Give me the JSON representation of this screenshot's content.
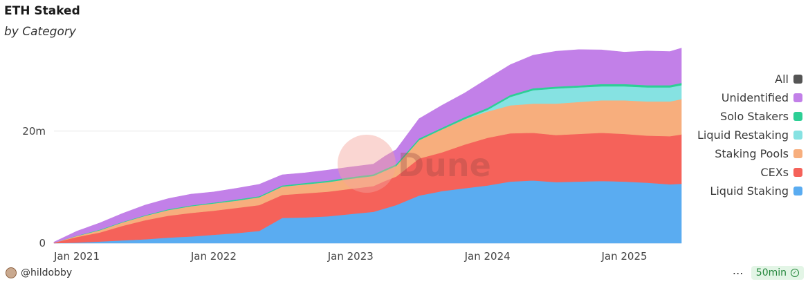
{
  "header": {
    "title": "ETH Staked",
    "subtitle": "by Category"
  },
  "watermark": "Dune",
  "footer": {
    "author": "@hildobby",
    "refresh": "50min"
  },
  "chart_data": {
    "type": "area",
    "stacked": true,
    "x": [
      "2020-11",
      "2021-01",
      "2021-03",
      "2021-05",
      "2021-07",
      "2021-09",
      "2021-11",
      "2022-01",
      "2022-03",
      "2022-05",
      "2022-07",
      "2022-09",
      "2022-11",
      "2023-01",
      "2023-03",
      "2023-04",
      "2023-05",
      "2023-07",
      "2023-09",
      "2023-11",
      "2024-01",
      "2024-03",
      "2024-05",
      "2024-07",
      "2024-09",
      "2024-11",
      "2025-01",
      "2025-03",
      "2025-05",
      "2025-06"
    ],
    "x_ticks": [
      "Jan 2021",
      "Jan 2022",
      "Jan 2023",
      "Jan 2024",
      "Jan 2025"
    ],
    "y_ticks": [
      "0",
      "20m"
    ],
    "ylim": [
      0,
      36000000
    ],
    "grid": true,
    "legend_position": "right",
    "legend_all": {
      "name": "All",
      "color": "#555555"
    },
    "series": [
      {
        "name": "Liquid Staking",
        "color": "#5aacf1",
        "values": [
          0,
          0.1,
          0.3,
          0.5,
          0.7,
          1.0,
          1.2,
          1.5,
          1.8,
          2.2,
          4.5,
          4.6,
          4.8,
          5.2,
          5.6,
          6.2,
          6.8,
          8.5,
          9.3,
          9.8,
          10.3,
          11.0,
          11.2,
          10.9,
          11.0,
          11.1,
          11.0,
          10.8,
          10.5,
          10.6
        ]
      },
      {
        "name": "CEXs",
        "color": "#f5625a",
        "values": [
          0.1,
          1.0,
          1.6,
          2.6,
          3.4,
          3.9,
          4.2,
          4.3,
          4.5,
          4.6,
          4.1,
          4.3,
          4.4,
          4.5,
          4.6,
          4.9,
          5.1,
          6.6,
          6.9,
          7.8,
          8.5,
          8.6,
          8.5,
          8.4,
          8.5,
          8.6,
          8.5,
          8.4,
          8.6,
          8.8
        ]
      },
      {
        "name": "Staking Pools",
        "color": "#f7ae7d",
        "values": [
          0,
          0.2,
          0.4,
          0.6,
          0.8,
          1.0,
          1.2,
          1.3,
          1.3,
          1.4,
          1.5,
          1.6,
          1.7,
          1.8,
          1.8,
          1.8,
          1.9,
          3.3,
          4.1,
          4.5,
          4.7,
          5.0,
          5.2,
          5.6,
          5.7,
          5.8,
          6.0,
          6.1,
          6.2,
          6.3
        ]
      },
      {
        "name": "Liquid Restaking",
        "color": "#86e2e2",
        "values": [
          0,
          0,
          0,
          0,
          0,
          0,
          0,
          0,
          0,
          0,
          0,
          0,
          0,
          0,
          0,
          0,
          0,
          0,
          0,
          0.05,
          0.3,
          1.5,
          2.4,
          2.7,
          2.6,
          2.5,
          2.5,
          2.5,
          2.5,
          2.5
        ]
      },
      {
        "name": "Solo Stakers",
        "color": "#2dcf95",
        "values": [
          0,
          0.05,
          0.1,
          0.1,
          0.1,
          0.15,
          0.15,
          0.15,
          0.2,
          0.2,
          0.2,
          0.25,
          0.25,
          0.3,
          0.3,
          0.3,
          0.3,
          0.3,
          0.3,
          0.35,
          0.35,
          0.35,
          0.35,
          0.35,
          0.35,
          0.4,
          0.4,
          0.4,
          0.4,
          0.4
        ]
      },
      {
        "name": "Unidentified",
        "color": "#c280e8",
        "values": [
          0.1,
          0.8,
          1.2,
          1.5,
          1.8,
          1.9,
          2.0,
          1.9,
          2.0,
          2.1,
          1.9,
          1.8,
          1.9,
          1.8,
          1.8,
          2.3,
          2.6,
          3.5,
          4.0,
          4.3,
          5.2,
          5.4,
          5.9,
          6.3,
          6.4,
          6.1,
          5.7,
          6.1,
          6.0,
          6.2
        ]
      }
    ],
    "value_unit": "millions ETH"
  }
}
